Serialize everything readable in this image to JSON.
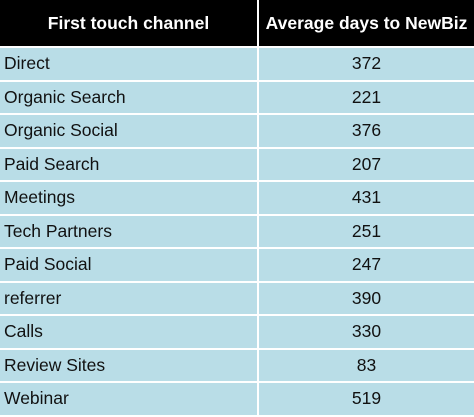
{
  "table": {
    "headers": [
      "First touch channel",
      "Average days to NewBiz"
    ],
    "rows": [
      {
        "channel": "Direct",
        "days": "372"
      },
      {
        "channel": "Organic Search",
        "days": "221"
      },
      {
        "channel": "Organic Social",
        "days": "376"
      },
      {
        "channel": "Paid Search",
        "days": "207"
      },
      {
        "channel": "Meetings",
        "days": "431"
      },
      {
        "channel": "Tech Partners",
        "days": "251"
      },
      {
        "channel": "Paid Social",
        "days": "247"
      },
      {
        "channel": "referrer",
        "days": "390"
      },
      {
        "channel": "Calls",
        "days": "330"
      },
      {
        "channel": "Review Sites",
        "days": "83"
      },
      {
        "channel": "Webinar",
        "days": "519"
      }
    ]
  },
  "colors": {
    "header_bg": "#000000",
    "header_text": "#ffffff",
    "row_bg": "#b9dde7",
    "grid": "#ffffff"
  }
}
